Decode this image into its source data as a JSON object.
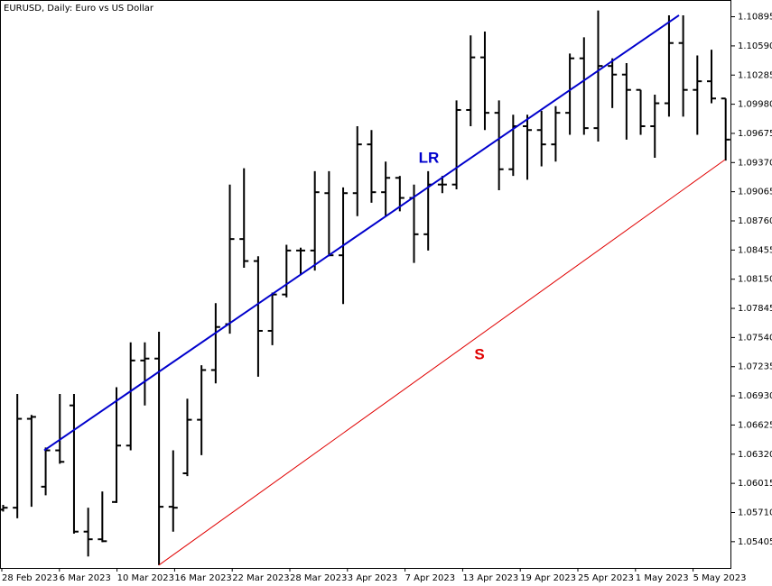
{
  "chart_data": {
    "type": "ohlc",
    "title": "EURUSD, Daily:  Euro vs US Dollar",
    "open": [
      1.0574,
      1.0576,
      1.0669,
      1.0598,
      1.0636,
      1.0683,
      1.0551,
      1.0543,
      1.0582,
      1.0641,
      1.073,
      1.0732,
      1.0577,
      1.0612,
      1.0668,
      1.072,
      1.0768,
      1.0857,
      1.0834,
      1.0761,
      1.0799,
      1.0845,
      1.0845,
      1.0905,
      1.084,
      1.0905,
      1.0956,
      1.0906,
      1.0921,
      1.09,
      1.0862,
      1.0914,
      1.0914,
      1.0992,
      1.1047,
      1.0989,
      1.093,
      1.0975,
      1.0971,
      1.0956,
      1.0989,
      1.1046,
      1.0973,
      1.1038,
      1.1029,
      1.1013,
      1.0975,
      1.0999,
      1.1062,
      1.1013,
      1.1022,
      1.1004
    ],
    "high": [
      1.0579,
      1.0695,
      1.0673,
      1.0639,
      1.0695,
      1.0695,
      1.0576,
      1.0593,
      1.0702,
      1.0749,
      1.0749,
      1.076,
      1.0636,
      1.069,
      1.0725,
      1.079,
      1.0914,
      1.0931,
      1.0839,
      1.0801,
      1.0851,
      1.0848,
      1.0928,
      1.0928,
      1.0911,
      1.0975,
      1.0971,
      1.0938,
      1.0923,
      1.0914,
      1.0928,
      1.0923,
      1.1002,
      1.107,
      1.1074,
      1.1002,
      1.0987,
      1.0987,
      1.0991,
      1.0996,
      1.1051,
      1.1068,
      1.1096,
      1.1046,
      1.1041,
      1.1013,
      1.1008,
      1.1091,
      1.1091,
      1.1049,
      1.1055,
      1.1004
    ],
    "low": [
      1.0572,
      1.0565,
      1.0577,
      1.0589,
      1.0622,
      1.0549,
      1.0525,
      1.054,
      1.0581,
      1.0636,
      1.0683,
      1.0516,
      1.0551,
      1.0609,
      1.0631,
      1.0706,
      1.0758,
      1.0827,
      1.0713,
      1.0746,
      1.0796,
      1.082,
      1.0824,
      1.0839,
      1.0789,
      1.0881,
      1.0895,
      1.0881,
      1.0886,
      1.0832,
      1.0845,
      1.0905,
      1.0909,
      1.0975,
      1.0971,
      1.0908,
      1.0923,
      1.0919,
      1.0933,
      1.0938,
      1.0966,
      1.0966,
      1.0959,
      1.0994,
      1.0961,
      1.0966,
      1.0942,
      1.0985,
      1.0985,
      1.0966,
      1.0999,
      1.0939
    ],
    "close": [
      1.0576,
      1.0669,
      1.0671,
      1.0636,
      1.0624,
      1.0551,
      1.0543,
      1.0541,
      1.0641,
      1.073,
      1.0732,
      1.0577,
      1.0576,
      1.0668,
      1.072,
      1.0765,
      1.0857,
      1.0834,
      1.0761,
      1.0799,
      1.0845,
      1.0845,
      1.0906,
      1.084,
      1.0905,
      1.0956,
      1.0906,
      1.0921,
      1.09,
      1.0862,
      1.0914,
      1.0914,
      1.0992,
      1.1047,
      1.0989,
      1.093,
      1.0975,
      1.0971,
      1.0956,
      1.0989,
      1.1046,
      1.0973,
      1.1038,
      1.1029,
      1.1013,
      1.0975,
      1.0999,
      1.1062,
      1.1013,
      1.1022,
      1.1004,
      1.0961
    ],
    "color": "#000000",
    "x_labels": [
      "28 Feb 2023",
      "6 Mar 2023",
      "10 Mar 2023",
      "16 Mar 2023",
      "22 Mar 2023",
      "28 Mar 2023",
      "3 Apr 2023",
      "7 Apr 2023",
      "13 Apr 2023",
      "19 Apr 2023",
      "25 Apr 2023",
      "1 May 2023",
      "5 May 2023"
    ],
    "ylim": [
      1.0513,
      1.1107
    ],
    "yticks": [
      1.05405,
      {
        "value": 1.0571,
        "label": "1.05710"
      },
      1.06015,
      {
        "value": 1.0632,
        "label": "1.06320"
      },
      1.06625,
      {
        "value": 1.0693,
        "label": "1.06930"
      },
      1.07235,
      {
        "value": 1.0754,
        "label": "1.07540"
      },
      1.07845,
      {
        "value": 1.0815,
        "label": "1.08150"
      },
      1.08455,
      {
        "value": 1.0876,
        "label": "1.08760"
      },
      1.09065,
      {
        "value": 1.0937,
        "label": "1.09370"
      },
      1.09675,
      {
        "value": 1.0998,
        "label": "1.09980"
      },
      1.10285,
      {
        "value": 1.1059,
        "label": "1.10590"
      },
      1.10895
    ],
    "lines": [
      {
        "name": "LR",
        "color": "#0000cc",
        "values": [
          1.0636,
          1.1091
        ]
      },
      {
        "name": "S",
        "color": "#e00000",
        "values": [
          1.0516,
          1.094
        ]
      }
    ]
  }
}
